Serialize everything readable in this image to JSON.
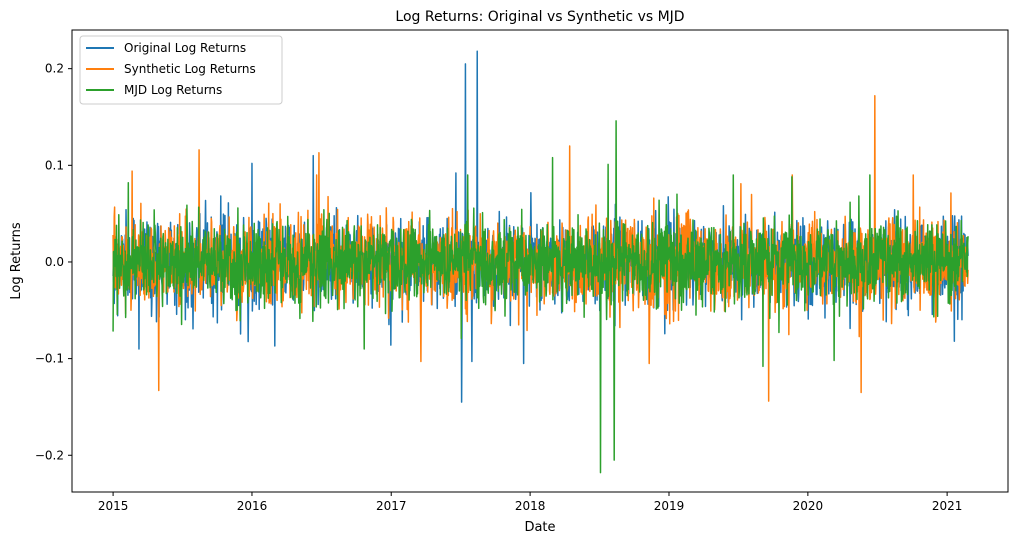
{
  "chart_data": {
    "type": "line",
    "title": "Log Returns: Original vs Synthetic vs MJD",
    "xlabel": "Date",
    "ylabel": "Log Returns",
    "xlim": [
      "2014-09-15",
      "2021-06-10"
    ],
    "ylim": [
      -0.238,
      0.24
    ],
    "x_ticks": [
      {
        "date": "2015-01-01",
        "label": "2015"
      },
      {
        "date": "2016-01-01",
        "label": "2016"
      },
      {
        "date": "2017-01-01",
        "label": "2017"
      },
      {
        "date": "2018-01-01",
        "label": "2018"
      },
      {
        "date": "2019-01-01",
        "label": "2019"
      },
      {
        "date": "2020-01-01",
        "label": "2020"
      },
      {
        "date": "2021-01-01",
        "label": "2021"
      }
    ],
    "y_ticks": [
      {
        "value": -0.2,
        "label": "−0.2"
      },
      {
        "value": -0.1,
        "label": "−0.1"
      },
      {
        "value": 0.0,
        "label": "0.0"
      },
      {
        "value": 0.1,
        "label": "0.1"
      },
      {
        "value": 0.2,
        "label": "0.2"
      }
    ],
    "grid": false,
    "legend_position": "top-left",
    "date_range": [
      "2015-01-01",
      "2021-02-25"
    ],
    "series": [
      {
        "name": "Original Log Returns",
        "color": "#1f77b4",
        "base_volatility": 0.022,
        "spikes": [
          {
            "date": "2017-07-15",
            "value": 0.205
          },
          {
            "date": "2017-08-15",
            "value": 0.218
          },
          {
            "date": "2017-07-05",
            "value": -0.145
          },
          {
            "date": "2017-08-01",
            "value": -0.103
          },
          {
            "date": "2017-12-15",
            "value": -0.105
          },
          {
            "date": "2017-06-20",
            "value": 0.092
          },
          {
            "date": "2016-03-01",
            "value": -0.087
          },
          {
            "date": "2016-01-01",
            "value": 0.102
          },
          {
            "date": "2016-06-10",
            "value": 0.11
          },
          {
            "date": "2021-01-20",
            "value": -0.082
          }
        ]
      },
      {
        "name": "Synthetic Log Returns",
        "color": "#ff7f0e",
        "base_volatility": 0.022,
        "spikes": [
          {
            "date": "2015-05-01",
            "value": -0.133
          },
          {
            "date": "2015-08-15",
            "value": 0.116
          },
          {
            "date": "2016-06-25",
            "value": 0.113
          },
          {
            "date": "2017-03-20",
            "value": -0.103
          },
          {
            "date": "2018-04-15",
            "value": 0.12
          },
          {
            "date": "2019-09-20",
            "value": -0.144
          },
          {
            "date": "2020-06-25",
            "value": 0.172
          },
          {
            "date": "2020-05-20",
            "value": -0.135
          },
          {
            "date": "2018-11-10",
            "value": -0.105
          },
          {
            "date": "2015-02-20",
            "value": 0.094
          }
        ]
      },
      {
        "name": "MJD Log Returns",
        "color": "#2ca02c",
        "base_volatility": 0.02,
        "spikes": [
          {
            "date": "2018-07-05",
            "value": -0.218
          },
          {
            "date": "2018-08-10",
            "value": -0.205
          },
          {
            "date": "2018-08-15",
            "value": 0.146
          },
          {
            "date": "2018-07-25",
            "value": 0.101
          },
          {
            "date": "2018-03-01",
            "value": 0.108
          },
          {
            "date": "2019-11-20",
            "value": 0.088
          },
          {
            "date": "2019-09-05",
            "value": -0.108
          },
          {
            "date": "2020-03-10",
            "value": -0.102
          },
          {
            "date": "2015-01-01",
            "value": -0.072
          },
          {
            "date": "2015-02-10",
            "value": 0.082
          }
        ]
      }
    ]
  }
}
